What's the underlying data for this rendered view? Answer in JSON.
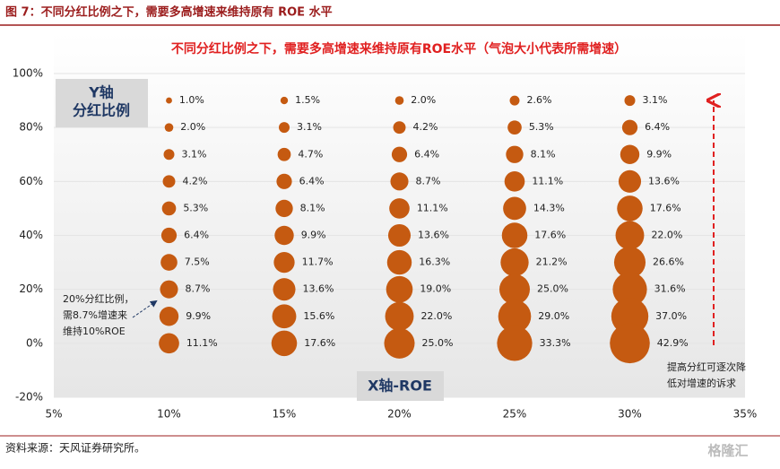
{
  "header": {
    "title": "图 7：不同分红比例之下，需要多高增速来维持原有 ROE 水平"
  },
  "chart_data": {
    "type": "bubble",
    "title": "不同分红比例之下，需要多高增速来维持原有ROE水平（气泡大小代表所需增速）",
    "y_axis_box": [
      "Y轴",
      "分红比例"
    ],
    "x_axis_box": "X轴-ROE",
    "xlim": [
      5,
      35
    ],
    "xticks": [
      {
        "value": 5,
        "label": "5%"
      },
      {
        "value": 10,
        "label": "10%"
      },
      {
        "value": 15,
        "label": "15%"
      },
      {
        "value": 20,
        "label": "20%"
      },
      {
        "value": 25,
        "label": "25%"
      },
      {
        "value": 30,
        "label": "30%"
      },
      {
        "value": 35,
        "label": "35%"
      }
    ],
    "ylim": [
      -20,
      100
    ],
    "yticks": [
      {
        "value": -20,
        "label": "-20%"
      },
      {
        "value": 0,
        "label": "0%"
      },
      {
        "value": 20,
        "label": "20%"
      },
      {
        "value": 40,
        "label": "40%"
      },
      {
        "value": 60,
        "label": "60%"
      },
      {
        "value": 80,
        "label": "80%"
      },
      {
        "value": 100,
        "label": "100%"
      }
    ],
    "grid": true,
    "color": "#c55a11",
    "series": [
      {
        "x": [
          10,
          10,
          10,
          10,
          10,
          10,
          10,
          10,
          10,
          10
        ],
        "y": [
          90,
          80,
          70,
          60,
          50,
          40,
          30,
          20,
          10,
          0
        ],
        "sizes": [
          1.0,
          2.0,
          3.1,
          4.2,
          5.3,
          6.4,
          7.5,
          8.7,
          9.9,
          11.1
        ],
        "size_labels": [
          "1.0%",
          "2.0%",
          "3.1%",
          "4.2%",
          "5.3%",
          "6.4%",
          "7.5%",
          "8.7%",
          "9.9%",
          "11.1%"
        ]
      },
      {
        "x": [
          15,
          15,
          15,
          15,
          15,
          15,
          15,
          15,
          15,
          15
        ],
        "y": [
          90,
          80,
          70,
          60,
          50,
          40,
          30,
          20,
          10,
          0
        ],
        "sizes": [
          1.5,
          3.1,
          4.7,
          6.4,
          8.1,
          9.9,
          11.7,
          13.6,
          15.6,
          17.6
        ],
        "size_labels": [
          "1.5%",
          "3.1%",
          "4.7%",
          "6.4%",
          "8.1%",
          "9.9%",
          "11.7%",
          "13.6%",
          "15.6%",
          "17.6%"
        ]
      },
      {
        "x": [
          20,
          20,
          20,
          20,
          20,
          20,
          20,
          20,
          20,
          20
        ],
        "y": [
          90,
          80,
          70,
          60,
          50,
          40,
          30,
          20,
          10,
          0
        ],
        "sizes": [
          2.0,
          4.2,
          6.4,
          8.7,
          11.1,
          13.6,
          16.3,
          19.0,
          22.0,
          25.0
        ],
        "size_labels": [
          "2.0%",
          "4.2%",
          "6.4%",
          "8.7%",
          "11.1%",
          "13.6%",
          "16.3%",
          "19.0%",
          "22.0%",
          "25.0%"
        ]
      },
      {
        "x": [
          25,
          25,
          25,
          25,
          25,
          25,
          25,
          25,
          25,
          25
        ],
        "y": [
          90,
          80,
          70,
          60,
          50,
          40,
          30,
          20,
          10,
          0
        ],
        "sizes": [
          2.6,
          5.3,
          8.1,
          11.1,
          14.3,
          17.6,
          21.2,
          25.0,
          29.0,
          33.3
        ],
        "size_labels": [
          "2.6%",
          "5.3%",
          "8.1%",
          "11.1%",
          "14.3%",
          "17.6%",
          "21.2%",
          "25.0%",
          "29.0%",
          "33.3%"
        ]
      },
      {
        "x": [
          30,
          30,
          30,
          30,
          30,
          30,
          30,
          30,
          30,
          30
        ],
        "y": [
          90,
          80,
          70,
          60,
          50,
          40,
          30,
          20,
          10,
          0
        ],
        "sizes": [
          3.1,
          6.4,
          9.9,
          13.6,
          17.6,
          22.0,
          26.6,
          31.6,
          37.0,
          42.9
        ],
        "size_labels": [
          "3.1%",
          "6.4%",
          "9.9%",
          "13.6%",
          "17.6%",
          "22.0%",
          "26.6%",
          "31.6%",
          "37.0%",
          "42.9%"
        ]
      }
    ],
    "callout": [
      "20%分红比例，",
      "需8.7%增速来",
      "维持10%ROE"
    ],
    "arrow_note": [
      "提高分红可逐次降",
      "低对增速的诉求"
    ]
  },
  "footer": {
    "source": "资料来源：天风证券研究所。",
    "watermark": "格隆汇"
  }
}
